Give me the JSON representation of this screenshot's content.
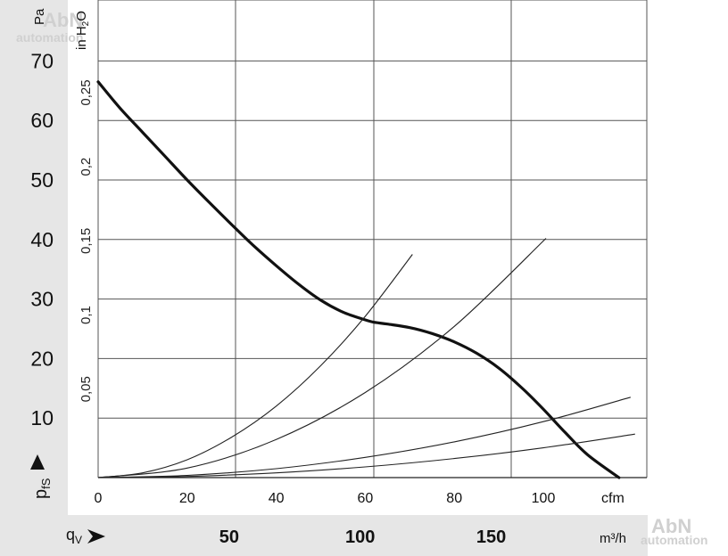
{
  "chart_data": {
    "type": "line",
    "title": "",
    "y_axis_primary": {
      "label": "Pa",
      "ticks": [
        "10",
        "20",
        "30",
        "40",
        "50",
        "60",
        "70"
      ],
      "tick_values": [
        10,
        20,
        30,
        40,
        50,
        60,
        70
      ],
      "range": [
        0,
        80
      ]
    },
    "y_axis_secondary": {
      "label": "in H₂O",
      "label_main": "in H",
      "label_sub": "2",
      "label_end": "O",
      "ticks": [
        "0,05",
        "0,1",
        "0,15",
        "0,2",
        "0,25"
      ],
      "tick_values": [
        0.05,
        0.1,
        0.15,
        0.2,
        0.25
      ]
    },
    "x_axis_primary": {
      "unit": "cfm",
      "ticks": [
        "0",
        "20",
        "40",
        "60",
        "80",
        "100"
      ],
      "tick_values": [
        0,
        20,
        40,
        60,
        80,
        100
      ],
      "range": [
        0,
        122
      ]
    },
    "x_axis_secondary": {
      "label": "m³/h",
      "ticks": [
        "50",
        "100",
        "150"
      ],
      "tick_values": [
        50,
        100,
        150
      ]
    },
    "y_symbol": {
      "base": "p",
      "sub": "fS"
    },
    "x_symbol": {
      "base": "q",
      "sub": "V"
    },
    "series": [
      {
        "role": "fan-curve",
        "x": [
          0,
          5,
          10,
          15,
          20,
          25,
          30,
          35,
          40,
          45,
          50,
          55,
          60,
          62,
          65,
          70,
          75,
          80,
          85,
          90,
          95,
          100,
          105,
          110,
          117
        ],
        "y": [
          66.5,
          62,
          58,
          54,
          50,
          46.2,
          42.5,
          38.9,
          35.6,
          32.5,
          29.8,
          27.8,
          26.5,
          26.1,
          25.8,
          25.2,
          24.2,
          22.8,
          20.9,
          18.4,
          15.2,
          11.5,
          7.5,
          3.8,
          0
        ]
      },
      {
        "role": "system-curve",
        "x": [
          0,
          10,
          20,
          30,
          40,
          50,
          60,
          70.6
        ],
        "y": [
          0,
          0.8,
          3.0,
          6.8,
          12.0,
          18.8,
          27.1,
          37.5
        ]
      },
      {
        "role": "system-curve",
        "x": [
          0,
          20,
          40,
          60,
          80,
          100.6
        ],
        "y": [
          0,
          1.6,
          6.4,
          14.3,
          25.4,
          40.2
        ]
      },
      {
        "role": "system-curve",
        "x": [
          0,
          20,
          40,
          60,
          80,
          100,
          119.6
        ],
        "y": [
          0,
          0.38,
          1.5,
          3.4,
          6.0,
          9.4,
          13.5
        ]
      },
      {
        "role": "system-curve",
        "x": [
          0,
          20,
          40,
          60,
          80,
          100,
          120.6
        ],
        "y": [
          0,
          0.2,
          0.8,
          1.8,
          3.2,
          5.0,
          7.3
        ]
      }
    ],
    "grid": true,
    "legend": "none"
  },
  "watermark": {
    "brand": "AbN",
    "sub": "automation"
  }
}
